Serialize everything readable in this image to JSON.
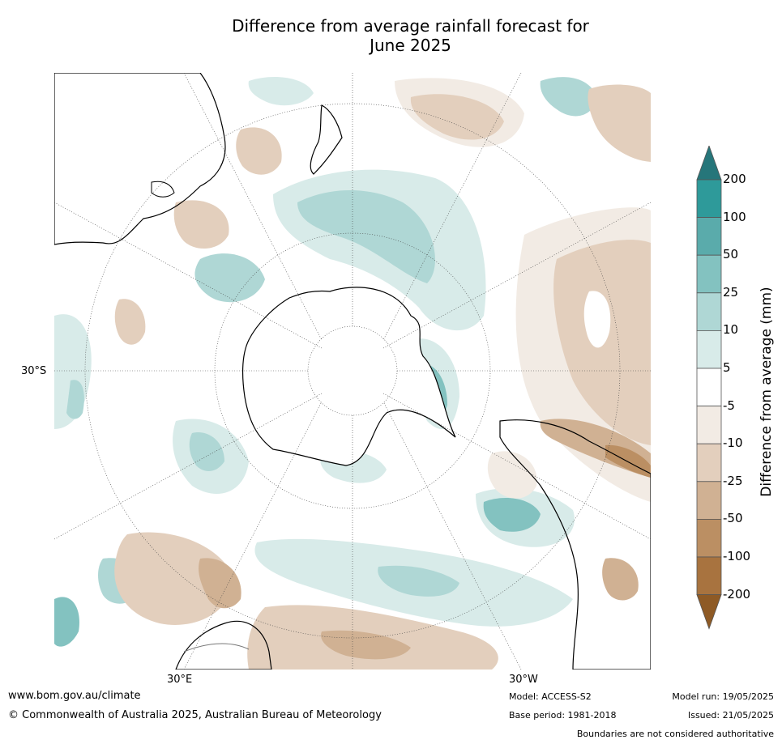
{
  "title": {
    "line1": "Difference from average rainfall forecast for",
    "line2": "June 2025"
  },
  "axis_labels": {
    "lat_left": "30°S",
    "lon_bottom_left": "30°E",
    "lon_bottom_right": "30°W"
  },
  "colorbar": {
    "label": "Difference from average (mm)",
    "ticks": [
      "200",
      "100",
      "50",
      "25",
      "10",
      "5",
      "-5",
      "-10",
      "-25",
      "-50",
      "-100",
      "-200"
    ],
    "colors_top_to_bottom": [
      "#26767a",
      "#2e9a9a",
      "#5aabab",
      "#83c2c0",
      "#afd7d5",
      "#d8ebe9",
      "#ffffff",
      "#f2ebe4",
      "#e3cfbd",
      "#d0b193",
      "#bb8f63",
      "#a8733f",
      "#8e5a25"
    ]
  },
  "footer": {
    "website": "www.bom.gov.au/climate",
    "copyright": "© Commonwealth of Australia 2025, Australian Bureau of Meteorology",
    "model": "Model: ACCESS-S2",
    "base_period": "Base period: 1981-2018",
    "model_run": "Model run: 19/05/2025",
    "issued": "Issued: 21/05/2025",
    "disclaimer": "Boundaries are not considered authoritative"
  }
}
